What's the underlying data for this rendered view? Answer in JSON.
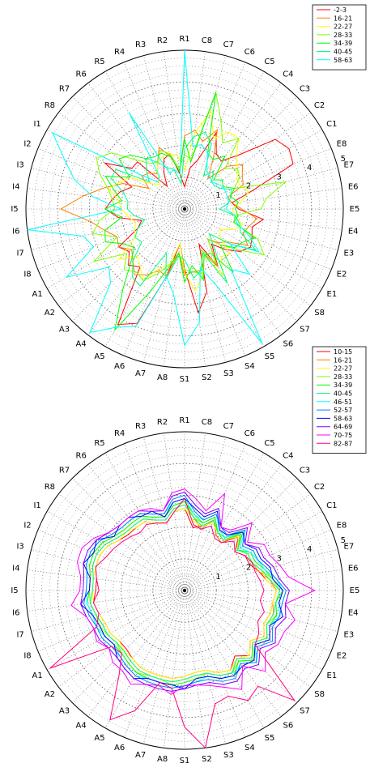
{
  "chart_data": [
    {
      "type": "radar",
      "axes": [
        "R1",
        "C8",
        "C7",
        "C6",
        "C5",
        "C4",
        "C3",
        "C2",
        "C1",
        "E8",
        "E7",
        "E6",
        "E5",
        "E4",
        "E3",
        "E2",
        "E1",
        "S8",
        "S7",
        "S6",
        "S5",
        "S4",
        "S3",
        "S2",
        "S1",
        "A8",
        "A7",
        "A6",
        "A5",
        "A4",
        "A3",
        "A2",
        "A1",
        "I8",
        "I7",
        "I6",
        "I5",
        "I4",
        "I3",
        "I2",
        "I1",
        "R8",
        "R7",
        "R6",
        "R5",
        "R4",
        "R3",
        "R2"
      ],
      "rlim": [
        0,
        5
      ],
      "ring_labels": [
        "1",
        "2",
        "3",
        "4",
        "5"
      ],
      "legend_position": "top-right",
      "series": [
        {
          "name": "-2-3",
          "color": "#ff0000",
          "values": [
            0.7,
            1.3,
            1.6,
            2.6,
            2.0,
            1.9,
            2.4,
            3.6,
            3.8,
            3.7,
            2.2,
            1.5,
            1.7,
            2.5,
            2.2,
            2.3,
            2.4,
            2.2,
            1.8,
            1.4,
            2.1,
            1.2,
            2.7,
            3.3,
            1.9,
            1.1,
            2.2,
            3.9,
            4.2,
            2.3,
            2.5,
            2.2,
            2.4,
            1.6,
            1.4,
            2.1,
            2.5,
            2.3,
            2.1,
            1.8,
            2.9,
            2.1,
            2.1,
            0.9,
            1.3,
            1.7,
            1.8,
            1.1
          ]
        },
        {
          "name": "16-21",
          "color": "#ff8000",
          "values": [
            2.3,
            2.5,
            2.2,
            2.7,
            1.8,
            1.2,
            1.9,
            2.3,
            2.1,
            2.0,
            1.4,
            1.5,
            1.8,
            2.3,
            2.1,
            2.0,
            2.3,
            1.7,
            1.5,
            1.2,
            2.1,
            1.5,
            2.0,
            2.0,
            2.1,
            1.4,
            2.2,
            2.1,
            2.4,
            2.6,
            2.3,
            2.1,
            2.4,
            2.3,
            2.6,
            3.0,
            3.9,
            3.2,
            2.6,
            2.1,
            1.3,
            1.7,
            1.6,
            1.4,
            1.7,
            2.1,
            1.7,
            1.2
          ]
        },
        {
          "name": "22-27",
          "color": "#ffff00",
          "values": [
            1.2,
            2.4,
            3.2,
            2.4,
            2.8,
            2.8,
            2.3,
            2.1,
            1.9,
            1.9,
            2.1,
            1.8,
            1.5,
            1.6,
            1.9,
            1.7,
            1.3,
            1.4,
            2.0,
            1.9,
            2.4,
            1.6,
            2.2,
            2.6,
            2.0,
            1.1,
            1.8,
            2.0,
            2.6,
            2.3,
            2.1,
            2.6,
            1.8,
            1.7,
            1.6,
            1.8,
            2.0,
            2.1,
            2.5,
            2.2,
            2.0,
            1.3,
            1.1,
            1.4,
            1.7,
            1.8,
            1.8,
            1.7
          ]
        },
        {
          "name": "28-33",
          "color": "#80ff00",
          "values": [
            1.7,
            1.6,
            3.8,
            3.0,
            2.4,
            2.8,
            1.8,
            2.1,
            2.0,
            1.7,
            3.3,
            2.6,
            2.4,
            1.6,
            1.6,
            2.5,
            2.9,
            2.1,
            1.6,
            1.2,
            2.0,
            1.4,
            2.1,
            2.0,
            1.9,
            1.4,
            1.8,
            2.2,
            2.6,
            2.5,
            2.7,
            2.3,
            3.3,
            2.3,
            3.0,
            2.7,
            2.2,
            2.3,
            2.5,
            2.9,
            3.2,
            2.9,
            2.2,
            1.8,
            1.7,
            2.0,
            1.8,
            1.3
          ]
        },
        {
          "name": "34-39",
          "color": "#00ff00",
          "values": [
            2.2,
            1.5,
            3.8,
            1.9,
            1.8,
            2.1,
            1.3,
            1.5,
            1.4,
            1.7,
            1.5,
            1.7,
            1.6,
            1.7,
            1.6,
            2.4,
            2.1,
            2.0,
            1.6,
            2.5,
            1.6,
            1.6,
            2.3,
            1.8,
            2.3,
            1.4,
            1.9,
            2.8,
            4.4,
            3.2,
            2.4,
            2.0,
            2.2,
            2.7,
            2.6,
            2.0,
            2.5,
            2.0,
            2.3,
            2.7,
            2.0,
            2.6,
            2.4,
            2.0,
            1.9,
            1.9,
            1.7,
            1.2
          ]
        },
        {
          "name": "40-45",
          "color": "#00ff80",
          "values": [
            1.9,
            2.3,
            2.5,
            2.2,
            1.2,
            1.5,
            1.2,
            1.2,
            1.3,
            1.6,
            1.5,
            1.4,
            1.1,
            1.6,
            1.8,
            1.9,
            2.6,
            1.8,
            1.1,
            1.5,
            2.7,
            1.5,
            2.0,
            2.2,
            1.6,
            1.5,
            2.3,
            1.5,
            2.8,
            2.7,
            2.3,
            1.7,
            1.8,
            1.6,
            1.3,
            1.6,
            1.8,
            1.8,
            2.0,
            2.5,
            2.5,
            1.4,
            1.7,
            2.0,
            1.7,
            1.4,
            1.3,
            0.8
          ]
        },
        {
          "name": "58-63",
          "color": "#00ffff",
          "values": [
            5.0,
            2.0,
            2.1,
            1.9,
            1.4,
            1.3,
            1.2,
            1.3,
            1.4,
            1.4,
            1.4,
            1.4,
            1.3,
            1.6,
            1.7,
            2.2,
            2.7,
            1.8,
            2.9,
            2.4,
            4.9,
            2.6,
            1.9,
            3.6,
            4.3,
            2.7,
            2.2,
            4.0,
            4.3,
            4.9,
            3.3,
            3.0,
            4.3,
            3.1,
            3.3,
            5.0,
            2.0,
            2.9,
            3.6,
            4.1,
            4.8,
            1.8,
            1.2,
            1.3,
            3.5,
            1.2,
            1.3,
            1.1
          ]
        }
      ]
    },
    {
      "type": "radar",
      "axes": [
        "R1",
        "C8",
        "C7",
        "C6",
        "C5",
        "C4",
        "C3",
        "C2",
        "C1",
        "E8",
        "E7",
        "E6",
        "E5",
        "E4",
        "E3",
        "E2",
        "E1",
        "S8",
        "S7",
        "S6",
        "S5",
        "S4",
        "S3",
        "S2",
        "S1",
        "A8",
        "A7",
        "A6",
        "A5",
        "A4",
        "A3",
        "A2",
        "A1",
        "I8",
        "I7",
        "I6",
        "I5",
        "I4",
        "I3",
        "I2",
        "I1",
        "R8",
        "R7",
        "R6",
        "R5",
        "R4",
        "R3",
        "R2"
      ],
      "rlim": [
        0,
        5
      ],
      "ring_labels": [
        "1",
        "2",
        "3",
        "4",
        "5"
      ],
      "legend_position": "top-right",
      "series": [
        {
          "name": "10-15",
          "color": "#ff0000",
          "values": [
            2.6,
            2.0,
            2.1,
            2.4,
            2.0,
            1.9,
            2.4,
            2.0,
            2.2,
            2.2,
            2.4,
            2.6,
            2.9,
            2.8,
            2.8,
            2.7,
            2.9,
            2.6,
            2.9,
            2.6,
            2.9,
            2.8,
            2.6,
            2.6,
            2.7,
            2.8,
            2.8,
            2.8,
            2.8,
            2.7,
            2.6,
            2.6,
            2.7,
            2.7,
            2.8,
            2.9,
            2.8,
            2.8,
            2.9,
            2.9,
            2.8,
            2.6,
            2.5,
            2.5,
            2.5,
            2.3,
            2.2,
            2.5
          ]
        },
        {
          "name": "16-21",
          "color": "#ff8000",
          "values": [
            2.7,
            2.3,
            2.0,
            2.4,
            2.0,
            1.9,
            2.5,
            2.0,
            2.2,
            2.3,
            2.4,
            2.7,
            2.9,
            2.8,
            2.9,
            2.8,
            3.0,
            2.7,
            3.0,
            2.7,
            3.0,
            2.9,
            2.7,
            2.7,
            2.8,
            2.9,
            2.9,
            2.9,
            2.9,
            2.8,
            2.7,
            2.7,
            2.8,
            2.8,
            2.9,
            3.0,
            2.9,
            2.9,
            3.0,
            3.0,
            2.9,
            2.7,
            2.6,
            2.6,
            2.6,
            2.4,
            2.3,
            2.6
          ]
        },
        {
          "name": "22-27",
          "color": "#ffff00",
          "values": [
            2.6,
            2.2,
            2.1,
            2.3,
            2.1,
            2.0,
            2.4,
            2.1,
            2.3,
            2.3,
            2.5,
            2.6,
            2.9,
            2.8,
            2.8,
            2.7,
            2.9,
            2.6,
            2.9,
            2.7,
            2.9,
            2.8,
            2.6,
            2.6,
            2.7,
            2.8,
            2.8,
            2.8,
            2.8,
            2.7,
            2.7,
            2.6,
            2.7,
            2.7,
            2.8,
            2.9,
            2.9,
            2.9,
            2.9,
            2.9,
            2.8,
            2.6,
            2.6,
            2.5,
            2.5,
            2.3,
            2.2,
            2.5
          ]
        },
        {
          "name": "28-33",
          "color": "#80ff00",
          "values": [
            2.8,
            2.3,
            2.2,
            2.5,
            2.1,
            2.0,
            2.6,
            2.1,
            2.3,
            2.3,
            2.5,
            2.8,
            3.0,
            2.9,
            3.0,
            2.8,
            3.0,
            2.7,
            3.1,
            2.8,
            3.0,
            2.9,
            2.7,
            2.8,
            2.9,
            3.0,
            2.9,
            2.9,
            3.0,
            2.9,
            2.8,
            2.7,
            2.8,
            2.9,
            2.9,
            3.0,
            3.0,
            3.0,
            3.1,
            3.1,
            3.0,
            2.8,
            2.7,
            2.7,
            2.7,
            2.5,
            2.4,
            2.7
          ]
        },
        {
          "name": "34-39",
          "color": "#00ff00",
          "values": [
            2.8,
            2.4,
            2.2,
            2.5,
            2.1,
            2.1,
            2.6,
            2.1,
            2.4,
            2.4,
            2.6,
            2.8,
            3.1,
            2.9,
            3.0,
            2.9,
            3.1,
            2.8,
            3.1,
            2.8,
            3.1,
            3.0,
            2.8,
            2.8,
            2.9,
            3.0,
            3.0,
            3.0,
            3.0,
            2.9,
            2.8,
            2.8,
            2.9,
            2.9,
            3.0,
            3.1,
            3.0,
            3.0,
            3.1,
            3.1,
            3.0,
            2.8,
            2.7,
            2.7,
            2.7,
            2.5,
            2.4,
            2.7
          ]
        },
        {
          "name": "40-45",
          "color": "#00ff80",
          "values": [
            2.7,
            2.3,
            2.1,
            2.4,
            2.1,
            2.0,
            2.5,
            2.1,
            2.3,
            2.3,
            2.5,
            2.7,
            3.0,
            2.9,
            2.9,
            2.8,
            3.0,
            2.7,
            3.0,
            2.7,
            3.0,
            2.9,
            2.7,
            2.7,
            2.8,
            2.9,
            2.9,
            2.9,
            2.9,
            2.8,
            2.7,
            2.7,
            2.8,
            2.8,
            2.9,
            3.0,
            2.9,
            2.9,
            3.0,
            3.0,
            2.9,
            2.7,
            2.6,
            2.6,
            2.6,
            2.4,
            2.3,
            2.6
          ]
        },
        {
          "name": "46-51",
          "color": "#00ffff",
          "values": [
            2.9,
            2.4,
            2.3,
            2.6,
            2.2,
            2.1,
            2.7,
            2.2,
            2.4,
            2.5,
            2.6,
            2.9,
            3.1,
            3.0,
            3.1,
            2.9,
            3.1,
            2.8,
            3.2,
            2.9,
            3.1,
            3.0,
            2.8,
            2.9,
            3.0,
            3.1,
            3.0,
            3.0,
            3.1,
            3.0,
            2.9,
            2.8,
            2.9,
            3.0,
            3.0,
            3.1,
            3.1,
            3.1,
            3.2,
            3.2,
            3.1,
            2.9,
            2.8,
            2.8,
            2.8,
            2.6,
            2.5,
            2.8
          ]
        },
        {
          "name": "52-57",
          "color": "#0080ff",
          "values": [
            3.0,
            2.5,
            2.3,
            2.6,
            2.3,
            2.2,
            2.7,
            2.3,
            2.5,
            2.5,
            2.7,
            2.9,
            3.2,
            3.1,
            3.1,
            3.0,
            3.2,
            2.9,
            3.2,
            2.9,
            3.2,
            3.1,
            2.9,
            2.9,
            3.0,
            3.1,
            3.1,
            3.1,
            3.1,
            3.0,
            2.9,
            2.9,
            3.0,
            3.0,
            3.1,
            3.2,
            3.1,
            3.1,
            3.2,
            3.2,
            3.1,
            2.9,
            2.8,
            2.8,
            2.8,
            2.6,
            2.5,
            2.9
          ]
        },
        {
          "name": "58-63",
          "color": "#0000ff",
          "values": [
            2.9,
            2.6,
            2.4,
            2.7,
            2.2,
            2.2,
            2.6,
            2.4,
            2.6,
            2.6,
            2.8,
            2.8,
            3.1,
            3.0,
            3.2,
            2.9,
            3.1,
            2.8,
            3.1,
            3.0,
            3.1,
            3.0,
            2.8,
            2.8,
            3.1,
            3.0,
            3.0,
            3.0,
            3.2,
            3.1,
            3.0,
            2.8,
            2.9,
            2.9,
            3.0,
            3.3,
            3.0,
            3.0,
            3.3,
            3.1,
            3.2,
            2.8,
            2.9,
            2.9,
            2.7,
            2.7,
            2.4,
            2.8
          ]
        },
        {
          "name": "64-69",
          "color": "#8000ff",
          "values": [
            3.1,
            2.7,
            2.5,
            2.8,
            2.3,
            2.3,
            2.8,
            2.4,
            2.7,
            2.7,
            2.9,
            3.0,
            3.3,
            3.2,
            3.3,
            3.1,
            3.3,
            3.0,
            3.3,
            3.1,
            3.3,
            3.2,
            3.0,
            3.0,
            3.1,
            3.2,
            3.2,
            3.2,
            3.2,
            3.1,
            3.0,
            3.0,
            3.1,
            3.1,
            3.2,
            3.3,
            3.2,
            3.2,
            3.3,
            3.3,
            3.2,
            3.0,
            2.9,
            2.9,
            2.9,
            2.7,
            2.6,
            3.0
          ]
        },
        {
          "name": "70-75",
          "color": "#ff00ff",
          "values": [
            3.2,
            2.9,
            2.6,
            3.3,
            2.3,
            2.4,
            3.0,
            2.5,
            2.9,
            2.9,
            3.1,
            3.3,
            4.1,
            3.2,
            3.6,
            3.4,
            3.4,
            3.2,
            3.6,
            3.0,
            3.6,
            3.3,
            3.1,
            3.0,
            3.0,
            3.3,
            3.1,
            3.2,
            3.4,
            3.2,
            3.2,
            3.0,
            3.2,
            3.1,
            3.2,
            3.6,
            3.3,
            3.3,
            3.5,
            3.5,
            3.3,
            3.0,
            2.9,
            2.9,
            2.9,
            2.8,
            2.6,
            3.1
          ]
        },
        {
          "name": "82-87",
          "color": "#ff0080",
          "values": [
            2.9,
            2.1,
            2.0,
            2.2,
            1.9,
            1.9,
            2.2,
            2.0,
            2.2,
            2.3,
            2.3,
            2.4,
            2.5,
            2.4,
            2.6,
            2.5,
            2.7,
            2.8,
            4.9,
            3.8,
            4.0,
            3.6,
            3.7,
            5.0,
            4.3,
            3.1,
            3.0,
            4.1,
            4.7,
            3.4,
            2.8,
            2.9,
            4.9,
            3.0,
            2.8,
            2.9,
            2.7,
            2.8,
            2.9,
            2.7,
            2.6,
            2.5,
            2.4,
            2.3,
            2.4,
            2.3,
            2.2,
            2.5
          ]
        }
      ]
    }
  ]
}
